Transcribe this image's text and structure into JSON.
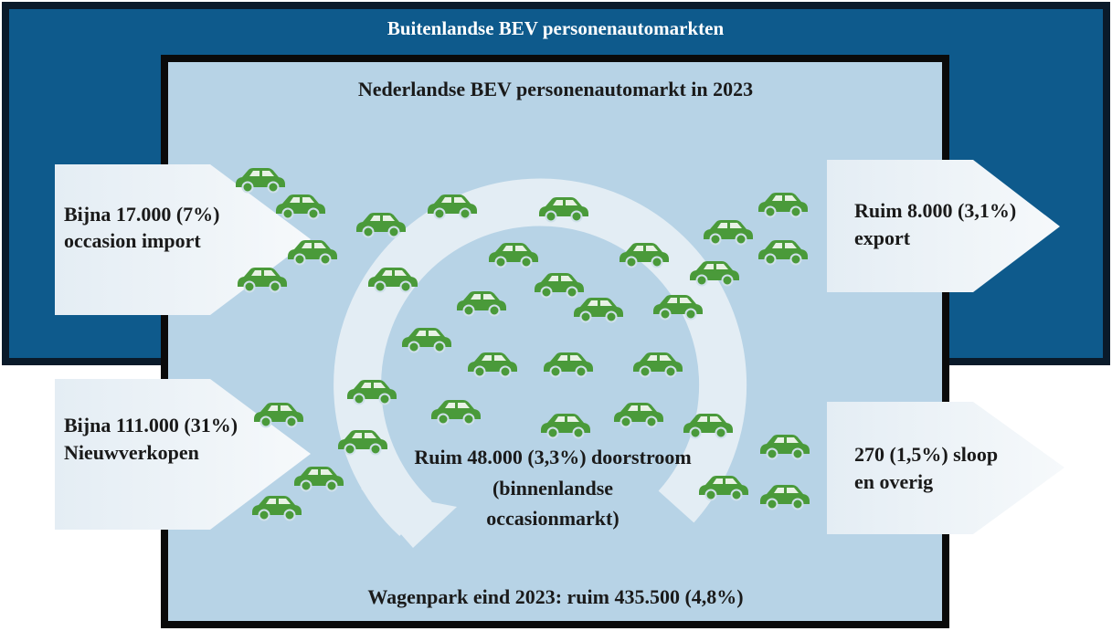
{
  "outer": {
    "title": "Buitenlandse BEV personenautomarkten"
  },
  "inner": {
    "title": "Nederlandse BEV personenautomarkt in 2023",
    "footer": "Wagenpark eind 2023: ruim 435.500 (4,8%)"
  },
  "flows": {
    "import": {
      "lines": [
        "Bijna 17.000 (7%)",
        "occasion import"
      ]
    },
    "new_sales": {
      "lines": [
        "Bijna 111.000 (31%)",
        "Nieuwverkopen"
      ]
    },
    "export": {
      "lines": [
        "Ruim 8.000 (3,1%)",
        "export"
      ]
    },
    "scrap": {
      "lines": [
        "270 (1,5%) sloop",
        "en overig"
      ]
    },
    "throughput": {
      "lines": [
        "Ruim 48.000 (3,3%) doorstroom",
        "(binnenlandse",
        "occasionmarkt)"
      ]
    }
  }
}
